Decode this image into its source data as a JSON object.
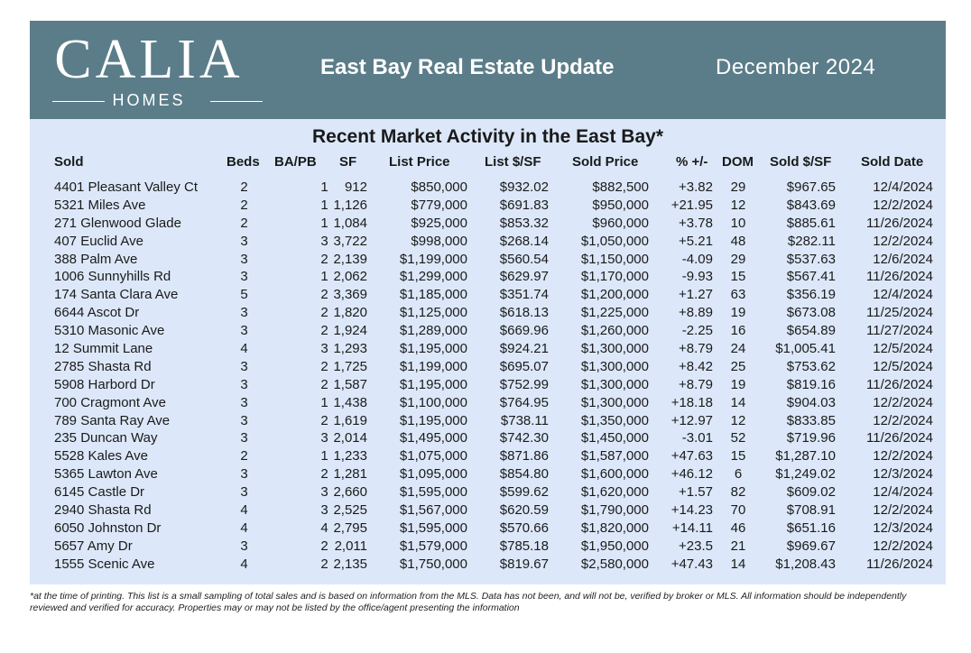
{
  "colors": {
    "header_bg": "#5b7d89",
    "panel_bg": "#dce8f9",
    "text": "#1a1a1a"
  },
  "logo": {
    "main": "CALIA",
    "sub": "HOMES"
  },
  "header": {
    "title": "East Bay Real Estate Update",
    "date": "December  2024"
  },
  "table": {
    "title": "Recent Market Activity in the East Bay*",
    "columns": {
      "sold": "Sold",
      "beds": "Beds",
      "ba_pb": "BA/PB",
      "sf": "SF",
      "list_price": "List Price",
      "list_sf": "List $/SF",
      "sold_price": "Sold Price",
      "pct": "% +/-",
      "dom": "DOM",
      "sold_sf": "Sold $/SF",
      "sold_date": "Sold Date"
    },
    "rows": [
      {
        "address": "4401 Pleasant Valley Ct",
        "beds": "2",
        "ba": "1",
        "sf": "912",
        "list_price": "$850,000",
        "list_sf": "$932.02",
        "sold_price": "$882,500",
        "pct": "+3.82",
        "dom": "29",
        "sold_sf": "$967.65",
        "sold_date": "12/4/2024"
      },
      {
        "address": "5321 Miles Ave",
        "beds": "2",
        "ba": "1",
        "sf": "1,126",
        "list_price": "$779,000",
        "list_sf": "$691.83",
        "sold_price": "$950,000",
        "pct": "+21.95",
        "dom": "12",
        "sold_sf": "$843.69",
        "sold_date": "12/2/2024"
      },
      {
        "address": "271 Glenwood Glade",
        "beds": "2",
        "ba": "1",
        "sf": "1,084",
        "list_price": "$925,000",
        "list_sf": "$853.32",
        "sold_price": "$960,000",
        "pct": "+3.78",
        "dom": "10",
        "sold_sf": "$885.61",
        "sold_date": "11/26/2024"
      },
      {
        "address": "407 Euclid Ave",
        "beds": "3",
        "ba": "3",
        "sf": "3,722",
        "list_price": "$998,000",
        "list_sf": "$268.14",
        "sold_price": "$1,050,000",
        "pct": "+5.21",
        "dom": "48",
        "sold_sf": "$282.11",
        "sold_date": "12/2/2024"
      },
      {
        "address": "388 Palm Ave",
        "beds": "3",
        "ba": "2",
        "sf": "2,139",
        "list_price": "$1,199,000",
        "list_sf": "$560.54",
        "sold_price": "$1,150,000",
        "pct": "-4.09",
        "dom": "29",
        "sold_sf": "$537.63",
        "sold_date": "12/6/2024"
      },
      {
        "address": "1006 Sunnyhills Rd",
        "beds": "3",
        "ba": "1",
        "sf": "2,062",
        "list_price": "$1,299,000",
        "list_sf": "$629.97",
        "sold_price": "$1,170,000",
        "pct": "-9.93",
        "dom": "15",
        "sold_sf": "$567.41",
        "sold_date": "11/26/2024"
      },
      {
        "address": "174 Santa Clara Ave",
        "beds": "5",
        "ba": "2",
        "sf": "3,369",
        "list_price": "$1,185,000",
        "list_sf": "$351.74",
        "sold_price": "$1,200,000",
        "pct": "+1.27",
        "dom": "63",
        "sold_sf": "$356.19",
        "sold_date": "12/4/2024"
      },
      {
        "address": "6644 Ascot Dr",
        "beds": "3",
        "ba": "2",
        "sf": "1,820",
        "list_price": "$1,125,000",
        "list_sf": "$618.13",
        "sold_price": "$1,225,000",
        "pct": "+8.89",
        "dom": "19",
        "sold_sf": "$673.08",
        "sold_date": "11/25/2024"
      },
      {
        "address": "5310 Masonic Ave",
        "beds": "3",
        "ba": "2",
        "sf": "1,924",
        "list_price": "$1,289,000",
        "list_sf": "$669.96",
        "sold_price": "$1,260,000",
        "pct": "-2.25",
        "dom": "16",
        "sold_sf": "$654.89",
        "sold_date": "11/27/2024"
      },
      {
        "address": "12 Summit Lane",
        "beds": "4",
        "ba": "3",
        "sf": "1,293",
        "list_price": "$1,195,000",
        "list_sf": "$924.21",
        "sold_price": "$1,300,000",
        "pct": "+8.79",
        "dom": "24",
        "sold_sf": "$1,005.41",
        "sold_date": "12/5/2024"
      },
      {
        "address": "2785 Shasta Rd",
        "beds": "3",
        "ba": "2",
        "sf": "1,725",
        "list_price": "$1,199,000",
        "list_sf": "$695.07",
        "sold_price": "$1,300,000",
        "pct": "+8.42",
        "dom": "25",
        "sold_sf": "$753.62",
        "sold_date": "12/5/2024"
      },
      {
        "address": "5908 Harbord Dr",
        "beds": "3",
        "ba": "2",
        "sf": "1,587",
        "list_price": "$1,195,000",
        "list_sf": "$752.99",
        "sold_price": "$1,300,000",
        "pct": "+8.79",
        "dom": "19",
        "sold_sf": "$819.16",
        "sold_date": "11/26/2024"
      },
      {
        "address": "700 Cragmont Ave",
        "beds": "3",
        "ba": "1",
        "sf": "1,438",
        "list_price": "$1,100,000",
        "list_sf": "$764.95",
        "sold_price": "$1,300,000",
        "pct": "+18.18",
        "dom": "14",
        "sold_sf": "$904.03",
        "sold_date": "12/2/2024"
      },
      {
        "address": "789 Santa Ray Ave",
        "beds": "3",
        "ba": "2",
        "sf": "1,619",
        "list_price": "$1,195,000",
        "list_sf": "$738.11",
        "sold_price": "$1,350,000",
        "pct": "+12.97",
        "dom": "12",
        "sold_sf": "$833.85",
        "sold_date": "12/2/2024"
      },
      {
        "address": "235 Duncan Way",
        "beds": "3",
        "ba": "3",
        "sf": "2,014",
        "list_price": "$1,495,000",
        "list_sf": "$742.30",
        "sold_price": "$1,450,000",
        "pct": "-3.01",
        "dom": "52",
        "sold_sf": "$719.96",
        "sold_date": "11/26/2024"
      },
      {
        "address": "5528 Kales Ave",
        "beds": "2",
        "ba": "1",
        "sf": "1,233",
        "list_price": "$1,075,000",
        "list_sf": "$871.86",
        "sold_price": "$1,587,000",
        "pct": "+47.63",
        "dom": "15",
        "sold_sf": "$1,287.10",
        "sold_date": "12/2/2024"
      },
      {
        "address": "5365 Lawton Ave",
        "beds": "3",
        "ba": "2",
        "sf": "1,281",
        "list_price": "$1,095,000",
        "list_sf": "$854.80",
        "sold_price": "$1,600,000",
        "pct": "+46.12",
        "dom": "6",
        "sold_sf": "$1,249.02",
        "sold_date": "12/3/2024"
      },
      {
        "address": "6145 Castle Dr",
        "beds": "3",
        "ba": "3",
        "sf": "2,660",
        "list_price": "$1,595,000",
        "list_sf": "$599.62",
        "sold_price": "$1,620,000",
        "pct": "+1.57",
        "dom": "82",
        "sold_sf": "$609.02",
        "sold_date": "12/4/2024"
      },
      {
        "address": "2940 Shasta Rd",
        "beds": "4",
        "ba": "3",
        "sf": "2,525",
        "list_price": "$1,567,000",
        "list_sf": "$620.59",
        "sold_price": "$1,790,000",
        "pct": "+14.23",
        "dom": "70",
        "sold_sf": "$708.91",
        "sold_date": "12/2/2024"
      },
      {
        "address": "6050 Johnston Dr",
        "beds": "4",
        "ba": "4",
        "sf": "2,795",
        "list_price": "$1,595,000",
        "list_sf": "$570.66",
        "sold_price": "$1,820,000",
        "pct": "+14.11",
        "dom": "46",
        "sold_sf": "$651.16",
        "sold_date": "12/3/2024"
      },
      {
        "address": "5657 Amy Dr",
        "beds": "3",
        "ba": "2",
        "sf": "2,011",
        "list_price": "$1,579,000",
        "list_sf": "$785.18",
        "sold_price": "$1,950,000",
        "pct": "+23.5",
        "dom": "21",
        "sold_sf": "$969.67",
        "sold_date": "12/2/2024"
      },
      {
        "address": "1555 Scenic Ave",
        "beds": "4",
        "ba": "2",
        "sf": "2,135",
        "list_price": "$1,750,000",
        "list_sf": "$819.67",
        "sold_price": "$2,580,000",
        "pct": "+47.43",
        "dom": "14",
        "sold_sf": "$1,208.43",
        "sold_date": "11/26/2024"
      }
    ]
  },
  "footnote": "*at the time of printing. This list is a small sampling of total sales and is based on information from the MLS. Data has not been, and will not be, verified by broker or MLS. All information should be independently reviewed and verified for accuracy. Properties may or may not be listed by the office/agent presenting the information"
}
